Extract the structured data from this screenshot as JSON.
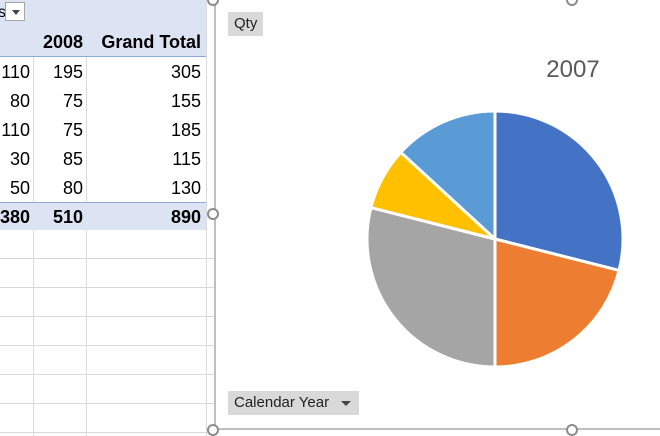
{
  "pivot": {
    "header_fragment": "s",
    "col_2008": "2008",
    "col_grand_total": "Grand Total",
    "rows": [
      {
        "c2007": "110",
        "c2008": "195",
        "total": "305"
      },
      {
        "c2007": "80",
        "c2008": "75",
        "total": "155"
      },
      {
        "c2007": "110",
        "c2008": "75",
        "total": "185"
      },
      {
        "c2007": "30",
        "c2008": "85",
        "total": "115"
      },
      {
        "c2007": "50",
        "c2008": "80",
        "total": "130"
      }
    ],
    "grand_total": {
      "c2007": "380",
      "c2008": "510",
      "total": "890"
    }
  },
  "chart": {
    "field_qty": "Qty",
    "field_year": "Calendar Year",
    "title": "2007"
  },
  "chart_data": {
    "type": "pie",
    "title": "2007",
    "values": [
      110,
      80,
      110,
      30,
      50
    ],
    "colors": [
      "#4472c4",
      "#ed7d31",
      "#a5a5a5",
      "#ffc000",
      "#5b9bd5"
    ]
  }
}
